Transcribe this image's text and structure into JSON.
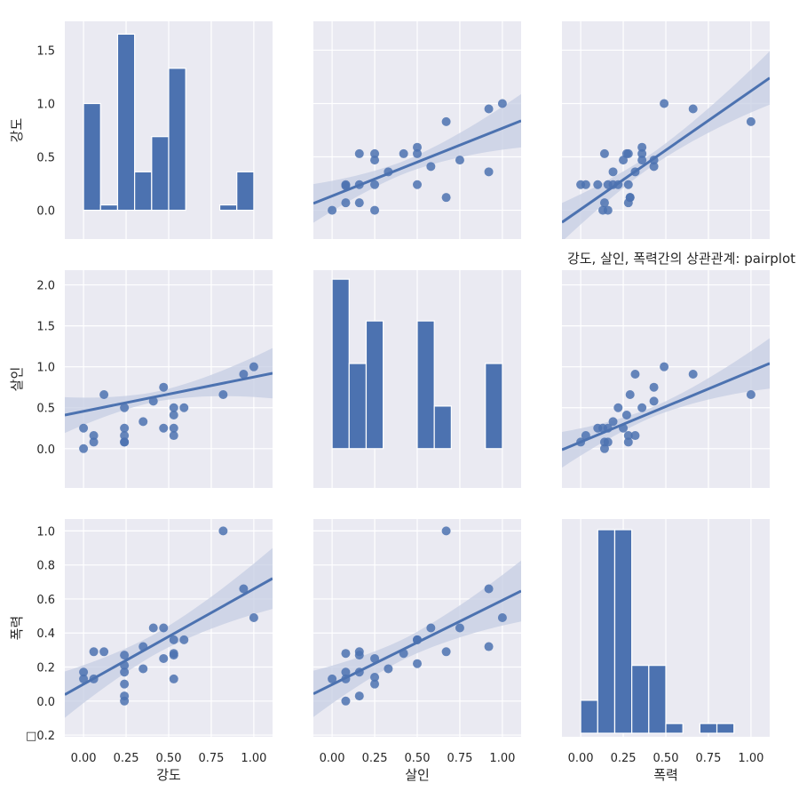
{
  "title": "강도, 살인, 폭력간의 상관관계: pairplot",
  "variables": [
    "강도",
    "살인",
    "폭력"
  ],
  "colors": {
    "bar": "#4c72b0",
    "point": "#4c72b0",
    "line": "#4c72b0",
    "band": "#c5cde3",
    "panel": "#eaeaf2",
    "grid": "#ffffff"
  },
  "chart_data": {
    "type": "scatter",
    "kind": "pairplot",
    "title": "강도, 살인, 폭력간의 상관관계: pairplot",
    "x_ticks": [
      "0.00",
      "0.25",
      "0.50",
      "0.75",
      "1.00"
    ],
    "row_ticks": [
      [
        "0.0",
        "0.5",
        "1.0",
        "1.5"
      ],
      [
        "0.0",
        "0.5",
        "1.0",
        "1.5",
        "2.0"
      ],
      [
        "□0.2",
        "0.0",
        "0.2",
        "0.4",
        "0.6",
        "0.8",
        "1.0"
      ]
    ],
    "xlim": [
      -0.11,
      1.11
    ],
    "ylim": [
      [
        -0.27,
        1.77
      ],
      [
        -0.48,
        2.18
      ],
      [
        -0.21,
        1.07
      ]
    ],
    "regression": [
      {
        "row": 1,
        "col": 0,
        "slope": 0.4185,
        "intercept": 0.4565
      },
      {
        "row": 2,
        "col": 0,
        "slope": 0.5596,
        "intercept": 0.0995
      },
      {
        "row": 0,
        "col": 1,
        "slope": 0.6346,
        "intercept": 0.1341
      },
      {
        "row": 2,
        "col": 1,
        "slope": 0.4953,
        "intercept": 0.097
      },
      {
        "row": 0,
        "col": 2,
        "slope": 1.1086,
        "intercept": 0.009
      },
      {
        "row": 1,
        "col": 2,
        "slope": 0.865,
        "intercept": 0.0814
      }
    ],
    "scatter": [
      {
        "row": 0,
        "col": 1,
        "x": [
          0.0,
          0.08,
          0.08,
          0.08,
          0.16,
          0.16,
          0.16,
          0.25,
          0.25,
          0.25,
          0.25,
          0.33,
          0.42,
          0.5,
          0.5,
          0.5,
          0.58,
          0.67,
          0.67,
          0.75,
          0.92,
          0.92,
          1.0
        ],
        "y": [
          0.0,
          0.07,
          0.23,
          0.24,
          0.07,
          0.24,
          0.53,
          0.0,
          0.24,
          0.47,
          0.53,
          0.36,
          0.53,
          0.24,
          0.53,
          0.59,
          0.41,
          0.12,
          0.83,
          0.47,
          0.36,
          0.95,
          1.0
        ]
      },
      {
        "row": 0,
        "col": 2,
        "x": [
          0.0,
          0.03,
          0.1,
          0.13,
          0.14,
          0.14,
          0.16,
          0.16,
          0.19,
          0.19,
          0.22,
          0.25,
          0.27,
          0.28,
          0.28,
          0.28,
          0.29,
          0.29,
          0.32,
          0.36,
          0.36,
          0.36,
          0.43,
          0.43,
          0.49,
          0.66,
          1.0
        ],
        "y": [
          0.24,
          0.24,
          0.24,
          0.0,
          0.07,
          0.53,
          0.0,
          0.24,
          0.24,
          0.36,
          0.24,
          0.47,
          0.53,
          0.24,
          0.07,
          0.53,
          0.12,
          0.12,
          0.36,
          0.53,
          0.47,
          0.59,
          0.41,
          0.47,
          1.0,
          0.95,
          0.83
        ]
      },
      {
        "row": 1,
        "col": 0,
        "x": [
          0.0,
          0.0,
          0.06,
          0.06,
          0.12,
          0.24,
          0.24,
          0.24,
          0.24,
          0.24,
          0.35,
          0.41,
          0.47,
          0.47,
          0.53,
          0.53,
          0.53,
          0.53,
          0.59,
          0.82,
          0.94,
          1.0
        ],
        "y": [
          0.0,
          0.25,
          0.08,
          0.16,
          0.66,
          0.08,
          0.08,
          0.16,
          0.25,
          0.5,
          0.33,
          0.58,
          0.25,
          0.75,
          0.16,
          0.25,
          0.41,
          0.5,
          0.5,
          0.66,
          0.91,
          1.0
        ]
      },
      {
        "row": 1,
        "col": 2,
        "x": [
          0.0,
          0.03,
          0.1,
          0.13,
          0.14,
          0.14,
          0.16,
          0.16,
          0.19,
          0.22,
          0.25,
          0.27,
          0.28,
          0.28,
          0.29,
          0.32,
          0.32,
          0.36,
          0.43,
          0.43,
          0.49,
          0.66,
          1.0
        ],
        "y": [
          0.08,
          0.16,
          0.25,
          0.25,
          0.0,
          0.08,
          0.25,
          0.08,
          0.33,
          0.5,
          0.25,
          0.41,
          0.16,
          0.08,
          0.66,
          0.91,
          0.16,
          0.5,
          0.58,
          0.75,
          1.0,
          0.91,
          0.66
        ]
      },
      {
        "row": 2,
        "col": 0,
        "x": [
          0.0,
          0.0,
          0.06,
          0.06,
          0.12,
          0.24,
          0.24,
          0.24,
          0.24,
          0.24,
          0.24,
          0.35,
          0.35,
          0.41,
          0.47,
          0.47,
          0.53,
          0.53,
          0.53,
          0.53,
          0.59,
          0.82,
          0.94,
          1.0
        ],
        "y": [
          0.17,
          0.13,
          0.13,
          0.29,
          0.29,
          0.0,
          0.03,
          0.1,
          0.17,
          0.21,
          0.27,
          0.19,
          0.32,
          0.43,
          0.25,
          0.43,
          0.13,
          0.28,
          0.27,
          0.36,
          0.36,
          1.0,
          0.66,
          0.49
        ]
      },
      {
        "row": 2,
        "col": 1,
        "x": [
          0.0,
          0.08,
          0.08,
          0.08,
          0.08,
          0.16,
          0.16,
          0.16,
          0.16,
          0.25,
          0.25,
          0.25,
          0.33,
          0.42,
          0.5,
          0.5,
          0.5,
          0.58,
          0.67,
          0.67,
          0.75,
          0.92,
          0.92,
          1.0
        ],
        "y": [
          0.13,
          0.0,
          0.13,
          0.17,
          0.28,
          0.03,
          0.27,
          0.29,
          0.17,
          0.1,
          0.14,
          0.25,
          0.19,
          0.28,
          0.22,
          0.36,
          0.36,
          0.43,
          0.29,
          1.0,
          0.43,
          0.66,
          0.32,
          0.49
        ]
      }
    ],
    "histograms": [
      {
        "var": "강도",
        "bins": [
          [
            0.0,
            0.1,
            1.0
          ],
          [
            0.1,
            0.2,
            0.05
          ],
          [
            0.2,
            0.3,
            1.65
          ],
          [
            0.3,
            0.4,
            0.36
          ],
          [
            0.4,
            0.5,
            0.69
          ],
          [
            0.5,
            0.6,
            1.33
          ],
          [
            0.6,
            0.7,
            0.0
          ],
          [
            0.7,
            0.8,
            0.0
          ],
          [
            0.8,
            0.9,
            0.05
          ],
          [
            0.9,
            1.0,
            0.36
          ]
        ]
      },
      {
        "var": "살인",
        "bins": [
          [
            0.0,
            0.1,
            2.07
          ],
          [
            0.1,
            0.2,
            1.04
          ],
          [
            0.2,
            0.3,
            1.56
          ],
          [
            0.3,
            0.4,
            0.0
          ],
          [
            0.4,
            0.5,
            0.0
          ],
          [
            0.5,
            0.6,
            1.56
          ],
          [
            0.6,
            0.7,
            0.52
          ],
          [
            0.7,
            0.8,
            0.0
          ],
          [
            0.8,
            0.9,
            0.0
          ],
          [
            0.9,
            1.0,
            1.04
          ]
        ]
      },
      {
        "var": "폭력",
        "bins": [
          [
            0.0,
            0.1,
            0.12
          ],
          [
            0.1,
            0.2,
            1.0
          ],
          [
            0.2,
            0.3,
            1.0
          ],
          [
            0.3,
            0.4,
            0.3
          ],
          [
            0.4,
            0.5,
            0.3
          ],
          [
            0.5,
            0.6,
            0.0
          ],
          [
            0.6,
            0.7,
            -0.05
          ],
          [
            0.7,
            0.8,
            0.0
          ],
          [
            0.8,
            0.9,
            0.0
          ],
          [
            0.9,
            1.0,
            -0.05
          ]
        ]
      }
    ]
  }
}
